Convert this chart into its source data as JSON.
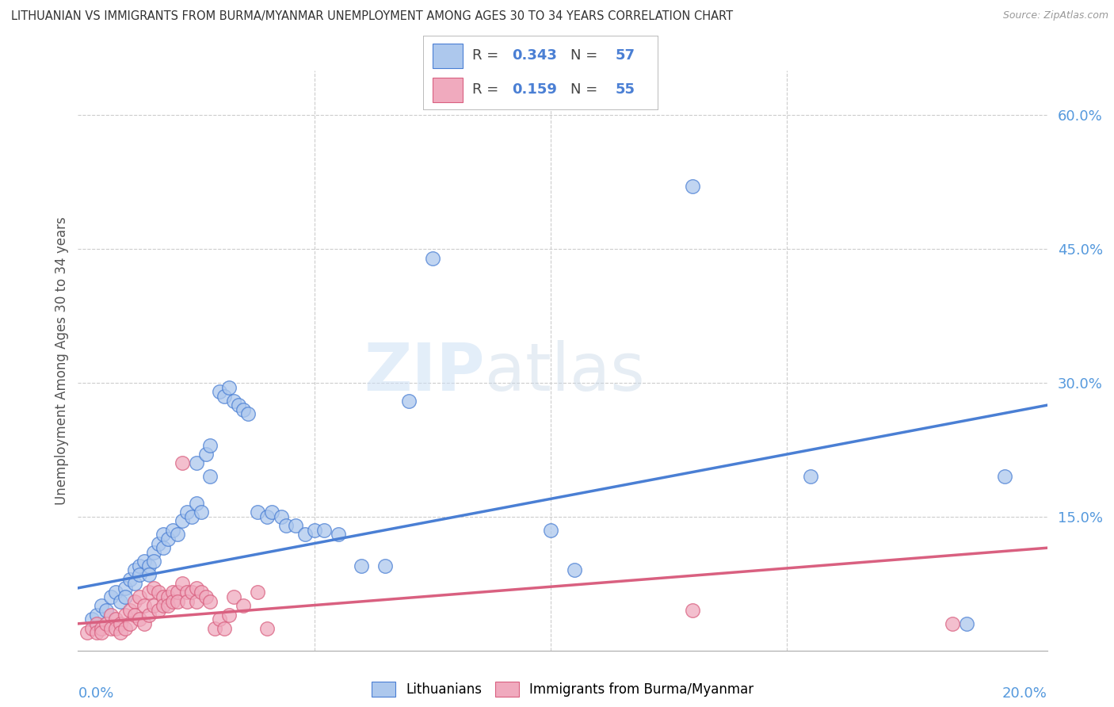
{
  "title": "LITHUANIAN VS IMMIGRANTS FROM BURMA/MYANMAR UNEMPLOYMENT AMONG AGES 30 TO 34 YEARS CORRELATION CHART",
  "source": "Source: ZipAtlas.com",
  "ylabel": "Unemployment Among Ages 30 to 34 years",
  "xlim": [
    0.0,
    0.205
  ],
  "ylim": [
    0.0,
    0.65
  ],
  "yticks": [
    0.0,
    0.15,
    0.3,
    0.45,
    0.6
  ],
  "ytick_labels": [
    "",
    "15.0%",
    "30.0%",
    "45.0%",
    "60.0%"
  ],
  "watermark": "ZIPatlas",
  "blue_color": "#adc8ed",
  "pink_color": "#f0aabe",
  "blue_line_color": "#4a7fd4",
  "pink_line_color": "#d96080",
  "title_color": "#333333",
  "axis_label_color": "#5599dd",
  "grid_color": "#cccccc",
  "blue_scatter": [
    [
      0.003,
      0.035
    ],
    [
      0.004,
      0.04
    ],
    [
      0.005,
      0.05
    ],
    [
      0.006,
      0.045
    ],
    [
      0.007,
      0.06
    ],
    [
      0.008,
      0.065
    ],
    [
      0.009,
      0.055
    ],
    [
      0.01,
      0.07
    ],
    [
      0.01,
      0.06
    ],
    [
      0.011,
      0.08
    ],
    [
      0.012,
      0.09
    ],
    [
      0.012,
      0.075
    ],
    [
      0.013,
      0.095
    ],
    [
      0.013,
      0.085
    ],
    [
      0.014,
      0.1
    ],
    [
      0.015,
      0.095
    ],
    [
      0.015,
      0.085
    ],
    [
      0.016,
      0.11
    ],
    [
      0.016,
      0.1
    ],
    [
      0.017,
      0.12
    ],
    [
      0.018,
      0.13
    ],
    [
      0.018,
      0.115
    ],
    [
      0.019,
      0.125
    ],
    [
      0.02,
      0.135
    ],
    [
      0.021,
      0.13
    ],
    [
      0.022,
      0.145
    ],
    [
      0.023,
      0.155
    ],
    [
      0.024,
      0.15
    ],
    [
      0.025,
      0.165
    ],
    [
      0.025,
      0.21
    ],
    [
      0.026,
      0.155
    ],
    [
      0.027,
      0.22
    ],
    [
      0.028,
      0.23
    ],
    [
      0.028,
      0.195
    ],
    [
      0.03,
      0.29
    ],
    [
      0.031,
      0.285
    ],
    [
      0.032,
      0.295
    ],
    [
      0.033,
      0.28
    ],
    [
      0.034,
      0.275
    ],
    [
      0.035,
      0.27
    ],
    [
      0.036,
      0.265
    ],
    [
      0.038,
      0.155
    ],
    [
      0.04,
      0.15
    ],
    [
      0.041,
      0.155
    ],
    [
      0.043,
      0.15
    ],
    [
      0.044,
      0.14
    ],
    [
      0.046,
      0.14
    ],
    [
      0.048,
      0.13
    ],
    [
      0.05,
      0.135
    ],
    [
      0.052,
      0.135
    ],
    [
      0.055,
      0.13
    ],
    [
      0.06,
      0.095
    ],
    [
      0.065,
      0.095
    ],
    [
      0.07,
      0.28
    ],
    [
      0.075,
      0.44
    ],
    [
      0.1,
      0.135
    ],
    [
      0.105,
      0.09
    ],
    [
      0.13,
      0.52
    ],
    [
      0.155,
      0.195
    ],
    [
      0.188,
      0.03
    ],
    [
      0.196,
      0.195
    ]
  ],
  "pink_scatter": [
    [
      0.002,
      0.02
    ],
    [
      0.003,
      0.025
    ],
    [
      0.004,
      0.03
    ],
    [
      0.004,
      0.02
    ],
    [
      0.005,
      0.025
    ],
    [
      0.005,
      0.02
    ],
    [
      0.006,
      0.03
    ],
    [
      0.007,
      0.04
    ],
    [
      0.007,
      0.025
    ],
    [
      0.008,
      0.035
    ],
    [
      0.008,
      0.025
    ],
    [
      0.009,
      0.03
    ],
    [
      0.009,
      0.02
    ],
    [
      0.01,
      0.04
    ],
    [
      0.01,
      0.025
    ],
    [
      0.011,
      0.045
    ],
    [
      0.011,
      0.03
    ],
    [
      0.012,
      0.055
    ],
    [
      0.012,
      0.04
    ],
    [
      0.013,
      0.06
    ],
    [
      0.013,
      0.035
    ],
    [
      0.014,
      0.05
    ],
    [
      0.014,
      0.03
    ],
    [
      0.015,
      0.065
    ],
    [
      0.015,
      0.04
    ],
    [
      0.016,
      0.07
    ],
    [
      0.016,
      0.05
    ],
    [
      0.017,
      0.065
    ],
    [
      0.017,
      0.045
    ],
    [
      0.018,
      0.06
    ],
    [
      0.018,
      0.05
    ],
    [
      0.019,
      0.06
    ],
    [
      0.019,
      0.05
    ],
    [
      0.02,
      0.065
    ],
    [
      0.02,
      0.055
    ],
    [
      0.021,
      0.065
    ],
    [
      0.021,
      0.055
    ],
    [
      0.022,
      0.21
    ],
    [
      0.022,
      0.075
    ],
    [
      0.023,
      0.065
    ],
    [
      0.023,
      0.055
    ],
    [
      0.024,
      0.065
    ],
    [
      0.025,
      0.07
    ],
    [
      0.025,
      0.055
    ],
    [
      0.026,
      0.065
    ],
    [
      0.027,
      0.06
    ],
    [
      0.028,
      0.055
    ],
    [
      0.029,
      0.025
    ],
    [
      0.03,
      0.035
    ],
    [
      0.031,
      0.025
    ],
    [
      0.032,
      0.04
    ],
    [
      0.033,
      0.06
    ],
    [
      0.035,
      0.05
    ],
    [
      0.038,
      0.065
    ],
    [
      0.04,
      0.025
    ],
    [
      0.13,
      0.045
    ],
    [
      0.185,
      0.03
    ]
  ],
  "blue_trendline": [
    [
      0.0,
      0.07
    ],
    [
      0.205,
      0.275
    ]
  ],
  "pink_trendline": [
    [
      0.0,
      0.03
    ],
    [
      0.205,
      0.115
    ]
  ]
}
